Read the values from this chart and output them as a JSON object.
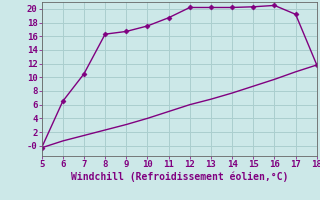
{
  "xlabel": "Windchill (Refroidissement éolien,°C)",
  "x_upper": [
    5,
    6,
    7,
    8,
    9,
    10,
    11,
    12,
    13,
    14,
    15,
    16,
    17,
    18
  ],
  "y_upper": [
    -0.3,
    6.5,
    10.5,
    16.3,
    16.7,
    17.5,
    18.7,
    20.2,
    20.2,
    20.2,
    20.3,
    20.5,
    19.2,
    11.8
  ],
  "x_lower": [
    5,
    6,
    7,
    8,
    9,
    10,
    11,
    12,
    13,
    14,
    15,
    16,
    17,
    18
  ],
  "y_lower": [
    -0.3,
    0.7,
    1.5,
    2.3,
    3.1,
    4.0,
    5.0,
    6.0,
    6.8,
    7.7,
    8.7,
    9.7,
    10.8,
    11.8
  ],
  "line_color": "#800080",
  "bg_color": "#cce8e8",
  "grid_color": "#aacece",
  "xlim": [
    5,
    18
  ],
  "ylim": [
    -1.5,
    21
  ],
  "yticks": [
    0,
    2,
    4,
    6,
    8,
    10,
    12,
    14,
    16,
    18,
    20
  ],
  "ytick_labels": [
    "-0",
    "2",
    "4",
    "6",
    "8",
    "10",
    "12",
    "14",
    "16",
    "18",
    "20"
  ],
  "xticks": [
    5,
    6,
    7,
    8,
    9,
    10,
    11,
    12,
    13,
    14,
    15,
    16,
    17,
    18
  ],
  "marker": "D",
  "markersize": 2.5,
  "linewidth": 1.0
}
